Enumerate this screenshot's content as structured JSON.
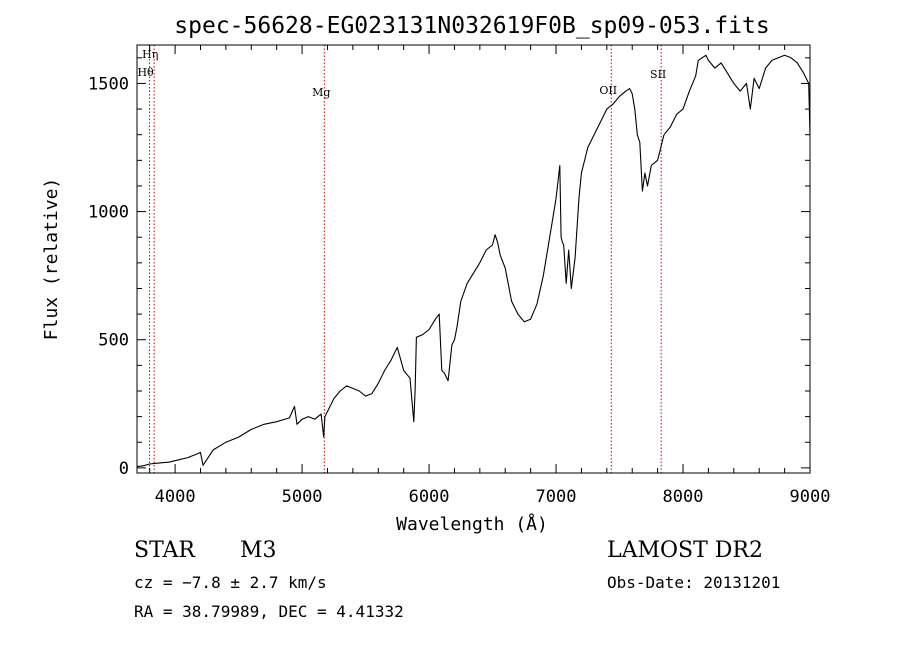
{
  "chart_data": {
    "type": "line",
    "title": "spec-56628-EG023131N032619F0B_sp09-053.fits",
    "xlabel": "Wavelength (Å)",
    "ylabel": "Flux (relative)",
    "xlim": [
      3700,
      9000
    ],
    "ylim": [
      -20,
      1650
    ],
    "xticks": [
      4000,
      5000,
      6000,
      7000,
      8000,
      9000
    ],
    "yticks": [
      0,
      500,
      1000,
      1500
    ],
    "grid": false,
    "series": [
      {
        "x": [
          3700,
          3750,
          3800,
          3850,
          3900,
          3950,
          4000,
          4100,
          4200,
          4220,
          4300,
          4400,
          4500,
          4600,
          4700,
          4800,
          4900,
          4940,
          4960,
          5000,
          5050,
          5100,
          5150,
          5170,
          5180,
          5200,
          5250,
          5300,
          5350,
          5400,
          5450,
          5500,
          5550,
          5600,
          5650,
          5700,
          5750,
          5800,
          5850,
          5880,
          5890,
          5900,
          5950,
          6000,
          6050,
          6080,
          6100,
          6120,
          6150,
          6180,
          6200,
          6220,
          6250,
          6300,
          6350,
          6400,
          6450,
          6500,
          6520,
          6540,
          6560,
          6600,
          6650,
          6700,
          6750,
          6800,
          6850,
          6900,
          6950,
          7000,
          7030,
          7040,
          7050,
          7060,
          7080,
          7100,
          7120,
          7150,
          7180,
          7200,
          7250,
          7300,
          7350,
          7400,
          7450,
          7500,
          7550,
          7580,
          7600,
          7620,
          7640,
          7660,
          7680,
          7700,
          7720,
          7750,
          7800,
          7850,
          7900,
          7950,
          8000,
          8050,
          8100,
          8120,
          8150,
          8180,
          8200,
          8250,
          8300,
          8350,
          8400,
          8450,
          8500,
          8530,
          8560,
          8600,
          8650,
          8700,
          8750,
          8800,
          8850,
          8900,
          8950,
          8990,
          9000
        ],
        "y": [
          5,
          8,
          15,
          18,
          20,
          22,
          28,
          40,
          60,
          10,
          70,
          100,
          120,
          150,
          170,
          180,
          195,
          240,
          170,
          190,
          200,
          190,
          210,
          120,
          200,
          220,
          270,
          300,
          320,
          310,
          300,
          280,
          290,
          330,
          380,
          420,
          470,
          380,
          350,
          180,
          300,
          510,
          520,
          540,
          580,
          600,
          380,
          370,
          340,
          480,
          500,
          550,
          650,
          720,
          760,
          800,
          850,
          870,
          910,
          880,
          830,
          780,
          650,
          600,
          570,
          580,
          640,
          750,
          900,
          1050,
          1180,
          900,
          880,
          870,
          720,
          850,
          700,
          820,
          1050,
          1150,
          1250,
          1300,
          1350,
          1400,
          1420,
          1450,
          1470,
          1480,
          1460,
          1400,
          1300,
          1270,
          1080,
          1150,
          1100,
          1180,
          1200,
          1300,
          1330,
          1380,
          1400,
          1470,
          1530,
          1590,
          1600,
          1610,
          1590,
          1560,
          1580,
          1540,
          1500,
          1470,
          1500,
          1400,
          1520,
          1480,
          1560,
          1590,
          1600,
          1610,
          1600,
          1580,
          1540,
          1500,
          1300
        ]
      }
    ],
    "lines": [
      {
        "label": "Hη",
        "x": 3835
      },
      {
        "label": "Hθ",
        "x": 3798
      },
      {
        "label": "Mg",
        "x": 5175
      },
      {
        "label": "OII",
        "x": 7435
      },
      {
        "label": "SII",
        "x": 7828
      }
    ],
    "axis_color": "#000000",
    "line_color": "#000000",
    "marker_color": "#cc0000"
  },
  "info": {
    "object_class": "STAR",
    "subclass": "M3",
    "survey": "LAMOST DR2",
    "cz": "cz = −7.8 ± 2.7 km/s",
    "obs_date": "Obs-Date: 20131201",
    "coords": "RA =  38.79989, DEC =   4.41332"
  }
}
